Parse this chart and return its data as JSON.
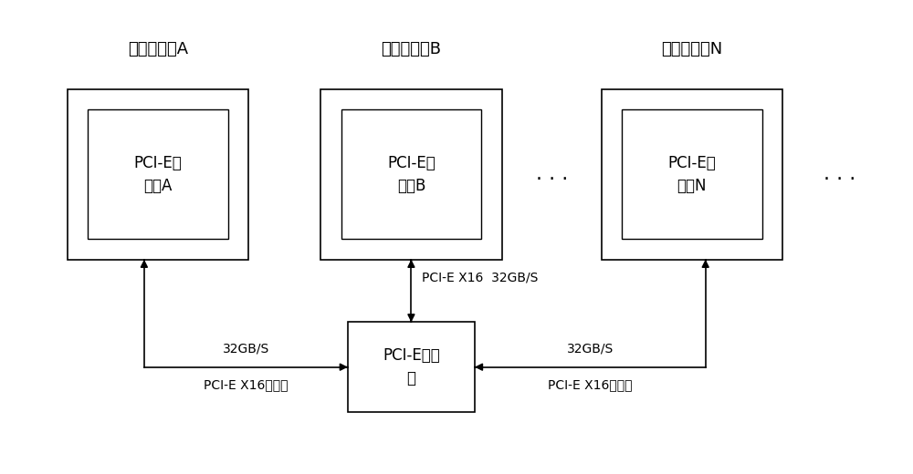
{
  "bg_color": "#ffffff",
  "fig_width": 10.0,
  "fig_height": 5.2,
  "title_A": "计算机设备A",
  "title_B": "计算机设备B",
  "title_N": "计算机设备N",
  "card_A_text": "PCI-E扩\n展卡A",
  "card_B_text": "PCI-E扩\n展卡B",
  "card_N_text": "PCI-E扩\n展卡N",
  "switch_text": "PCI-E交换\n机",
  "label_top_center": "PCI-E X16  32GB/S",
  "label_left_top": "32GB/S",
  "label_left_bottom": "PCI-E X16连接线",
  "label_right_top": "32GB/S",
  "label_right_bottom": "PCI-E X16连接线",
  "dots_center": ". . .",
  "dots_right": ". . .",
  "outer_box_color": "#000000",
  "inner_box_color": "#000000",
  "arrow_color": "#000000",
  "text_color": "#000000",
  "font_size_title": 13,
  "font_size_box": 12,
  "font_size_label": 10,
  "font_size_dots": 16
}
